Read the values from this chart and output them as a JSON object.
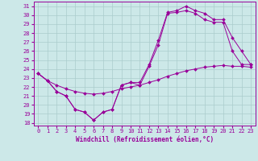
{
  "xlabel": "Windchill (Refroidissement éolien,°C)",
  "bg_color": "#cce8e8",
  "line_color": "#990099",
  "grid_color": "#aacccc",
  "xlim": [
    -0.5,
    23.5
  ],
  "ylim": [
    17.7,
    31.5
  ],
  "xticks": [
    0,
    1,
    2,
    3,
    4,
    5,
    6,
    7,
    8,
    9,
    10,
    11,
    12,
    13,
    14,
    15,
    16,
    17,
    18,
    19,
    20,
    21,
    22,
    23
  ],
  "yticks": [
    18,
    19,
    20,
    21,
    22,
    23,
    24,
    25,
    26,
    27,
    28,
    29,
    30,
    31
  ],
  "line1_x": [
    0,
    1,
    2,
    3,
    4,
    5,
    6,
    7,
    8,
    9,
    10,
    11,
    12,
    13,
    14,
    15,
    16,
    17,
    18,
    19,
    20,
    21,
    22,
    23
  ],
  "line1_y": [
    23.5,
    22.7,
    21.5,
    21.0,
    19.5,
    19.2,
    18.3,
    19.2,
    19.5,
    22.2,
    22.5,
    22.2,
    24.3,
    26.7,
    30.2,
    30.3,
    30.5,
    30.2,
    29.5,
    29.2,
    29.2,
    26.0,
    24.5,
    24.5
  ],
  "line2_x": [
    0,
    1,
    2,
    3,
    4,
    5,
    6,
    7,
    8,
    9,
    10,
    11,
    12,
    13,
    14,
    15,
    16,
    17,
    18,
    19,
    20,
    21,
    22,
    23
  ],
  "line2_y": [
    23.5,
    22.7,
    21.5,
    21.0,
    19.5,
    19.2,
    18.3,
    19.2,
    19.5,
    22.2,
    22.5,
    22.5,
    24.5,
    27.2,
    30.3,
    30.5,
    31.0,
    30.5,
    30.2,
    29.5,
    29.5,
    27.5,
    26.0,
    24.5
  ],
  "line3_x": [
    0,
    1,
    2,
    3,
    4,
    5,
    6,
    7,
    8,
    9,
    10,
    11,
    12,
    13,
    14,
    15,
    16,
    17,
    18,
    19,
    20,
    21,
    22,
    23
  ],
  "line3_y": [
    23.5,
    22.7,
    22.2,
    21.8,
    21.5,
    21.3,
    21.2,
    21.3,
    21.5,
    21.8,
    22.0,
    22.2,
    22.5,
    22.8,
    23.2,
    23.5,
    23.8,
    24.0,
    24.2,
    24.3,
    24.4,
    24.3,
    24.3,
    24.2
  ]
}
